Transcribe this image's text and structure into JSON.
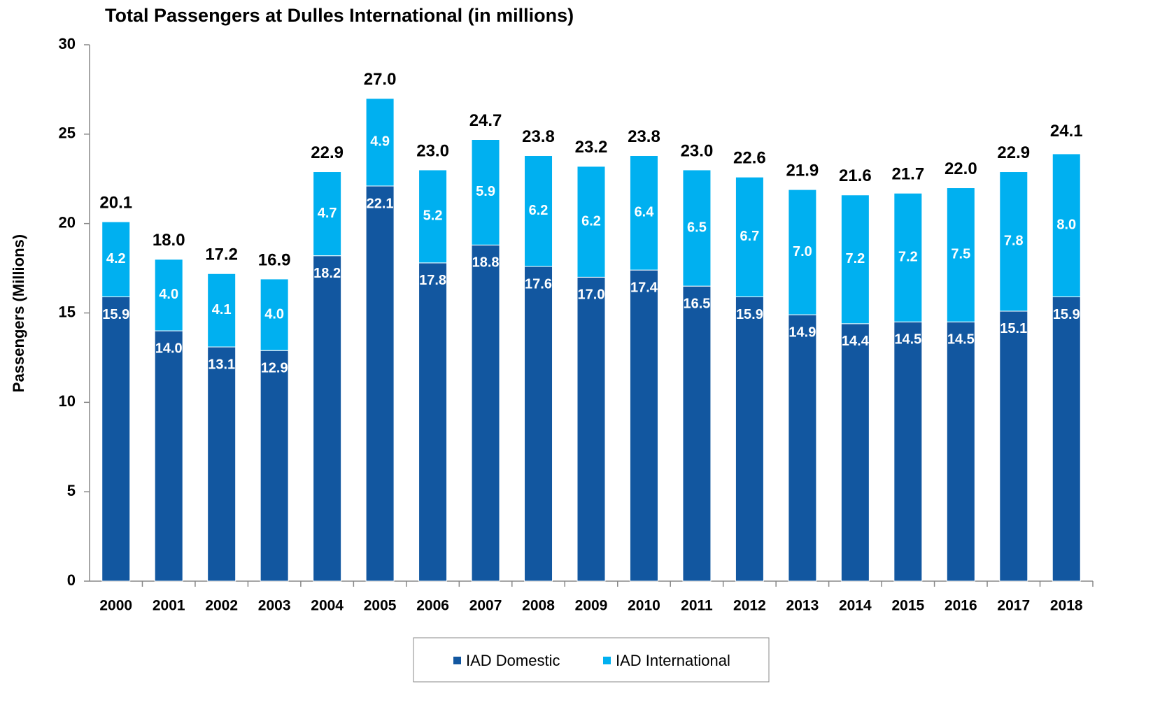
{
  "chart_data": {
    "type": "stacked_bar",
    "title": "Total Passengers at Dulles International (in millions)",
    "y_label": "Passengers (Millions)",
    "categories": [
      "2000",
      "2001",
      "2002",
      "2003",
      "2004",
      "2005",
      "2006",
      "2007",
      "2008",
      "2009",
      "2010",
      "2011",
      "2012",
      "2013",
      "2014",
      "2015",
      "2016",
      "2017",
      "2018"
    ],
    "series": [
      {
        "name": "IAD Domestic",
        "color": "#1257a0",
        "values": [
          15.9,
          14.0,
          13.1,
          12.9,
          18.2,
          22.1,
          17.8,
          18.8,
          17.6,
          17.0,
          17.4,
          16.5,
          15.9,
          14.9,
          14.4,
          14.5,
          14.5,
          15.1,
          15.9
        ],
        "value_labels": [
          "15.9",
          "14.0",
          "13.1",
          "12.9",
          "18.2",
          "22.1",
          "17.8",
          "18.8",
          "17.6",
          "17.0",
          "17.4",
          "16.5",
          "15.9",
          "14.9",
          "14.4",
          "14.5",
          "14.5",
          "15.1",
          "15.9"
        ]
      },
      {
        "name": "IAD International",
        "color": "#00b0f0",
        "values": [
          4.2,
          4.0,
          4.1,
          4.0,
          4.7,
          4.9,
          5.2,
          5.9,
          6.2,
          6.2,
          6.4,
          6.5,
          6.7,
          7.0,
          7.2,
          7.2,
          7.5,
          7.8,
          8.0
        ],
        "value_labels": [
          "4.2",
          "4.0",
          "4.1",
          "4.0",
          "4.7",
          "4.9",
          "5.2",
          "5.9",
          "6.2",
          "6.2",
          "6.4",
          "6.5",
          "6.7",
          "7.0",
          "7.2",
          "7.2",
          "7.5",
          "7.8",
          "8.0"
        ]
      }
    ],
    "totals": [
      20.1,
      18.0,
      17.2,
      16.9,
      22.9,
      27.0,
      23.0,
      24.7,
      23.8,
      23.2,
      23.8,
      23.0,
      22.6,
      21.9,
      21.6,
      21.7,
      22.0,
      22.9,
      24.1
    ],
    "total_labels": [
      "20.1",
      "18.0",
      "17.2",
      "16.9",
      "22.9",
      "27.0",
      "23.0",
      "24.7",
      "23.8",
      "23.2",
      "23.8",
      "23.0",
      "22.6",
      "21.9",
      "21.6",
      "21.7",
      "22.0",
      "22.9",
      "24.1"
    ],
    "ylim": [
      0,
      30
    ],
    "yticks": [
      0,
      5,
      10,
      15,
      20,
      25,
      30
    ],
    "legend": "bottom"
  }
}
